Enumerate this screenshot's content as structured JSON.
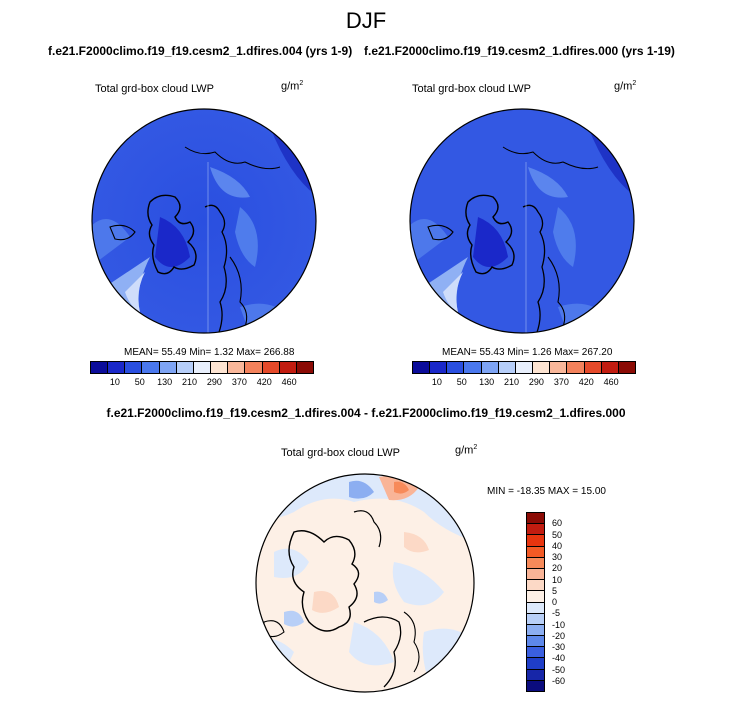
{
  "figure": {
    "title": "DJF",
    "run_a": "f.e21.F2000climo.f19_f19.cesm2_1.dfires.004 (yrs 1-9)",
    "run_b": "f.e21.F2000climo.f19_f19.cesm2_1.dfires.000 (yrs 1-19)",
    "diff_title": "f.e21.F2000climo.f19_f19.cesm2_1.dfires.004 - f.e21.F2000climo.f19_f19.cesm2_1.dfires.000"
  },
  "panels": [
    {
      "variable": "Total grd-box cloud LWP",
      "units_base": "g/m",
      "units_exp": "2",
      "stats": "MEAN=  55.49  Min=   1.32  Max= 266.88"
    },
    {
      "variable": "Total grd-box cloud LWP",
      "units_base": "g/m",
      "units_exp": "2",
      "stats": "MEAN=  55.43  Min=   1.26  Max= 267.20"
    }
  ],
  "diff_panel": {
    "variable": "Total grd-box cloud LWP",
    "units_base": "g/m",
    "units_exp": "2",
    "stats": "MIN = -18.35  MAX =  15.00"
  },
  "colorbar_main": {
    "colors": [
      "#0b0c9a",
      "#1a28c9",
      "#2a4fe0",
      "#4a78ee",
      "#7ea4f4",
      "#b6cef9",
      "#e8effc",
      "#fde4d2",
      "#f9b79a",
      "#f3825c",
      "#e54a2a",
      "#c21c10",
      "#8b0b05"
    ],
    "ticks": [
      "10",
      "50",
      "130",
      "210",
      "290",
      "370",
      "420",
      "460"
    ]
  },
  "colorbar_diff": {
    "colors": [
      "#8b0b05",
      "#c21c10",
      "#e8350f",
      "#f35a25",
      "#f78a5a",
      "#f9b497",
      "#fcd9c6",
      "#fdf0e6",
      "#dde9fb",
      "#b8cff7",
      "#8caef1",
      "#5e88ea",
      "#3a5fe0",
      "#1f3ec8",
      "#1726a8",
      "#0b0c7e"
    ],
    "ticks": [
      "60",
      "50",
      "40",
      "30",
      "20",
      "10",
      "5",
      "0",
      "-5",
      "-10",
      "-20",
      "-30",
      "-40",
      "-50",
      "-60"
    ]
  }
}
